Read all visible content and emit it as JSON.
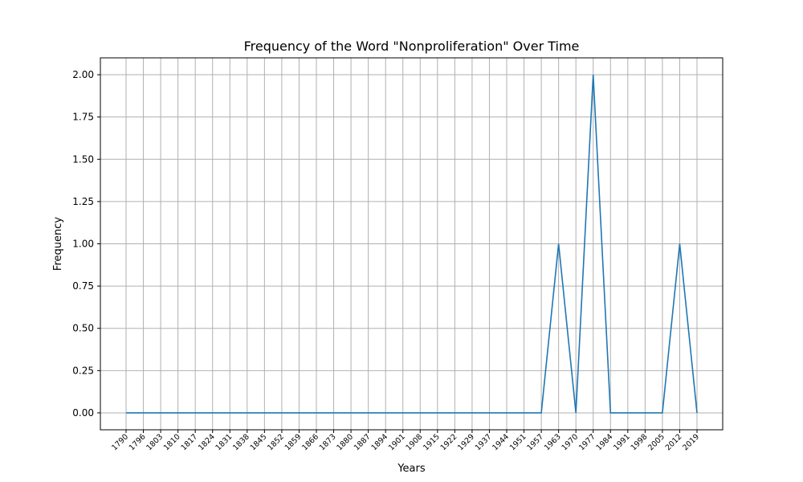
{
  "chart_data": {
    "type": "line",
    "title": "Frequency of the Word \"Nonproliferation\" Over Time",
    "xlabel": "Years",
    "ylabel": "Frequency",
    "x": [
      "1790",
      "1796",
      "1803",
      "1810",
      "1817",
      "1824",
      "1831",
      "1838",
      "1845",
      "1852",
      "1859",
      "1866",
      "1873",
      "1880",
      "1887",
      "1894",
      "1901",
      "1908",
      "1915",
      "1922",
      "1929",
      "1937",
      "1944",
      "1951",
      "1957",
      "1963",
      "1970",
      "1977",
      "1984",
      "1991",
      "1998",
      "2005",
      "2012",
      "2019"
    ],
    "series": [
      {
        "values": [
          0,
          0,
          0,
          0,
          0,
          0,
          0,
          0,
          0,
          0,
          0,
          0,
          0,
          0,
          0,
          0,
          0,
          0,
          0,
          0,
          0,
          0,
          0,
          0,
          0,
          1,
          0,
          2,
          0,
          0,
          0,
          0,
          1,
          0
        ],
        "color": "#1f77b4"
      }
    ],
    "ylim": [
      -0.1,
      2.1
    ],
    "yticks": [
      0.0,
      0.25,
      0.5,
      0.75,
      1.0,
      1.25,
      1.5,
      1.75,
      2.0
    ],
    "ytick_labels": [
      "0.00",
      "0.25",
      "0.50",
      "0.75",
      "1.00",
      "1.25",
      "1.50",
      "1.75",
      "2.00"
    ],
    "grid": true,
    "colors": {
      "grid": "#b0b0b0",
      "axes": "#000000",
      "line": "#1f77b4"
    }
  }
}
